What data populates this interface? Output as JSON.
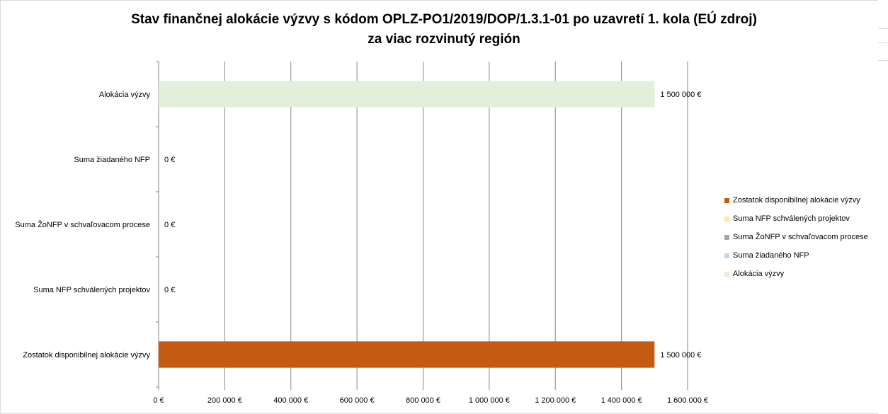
{
  "chart_data": {
    "type": "bar",
    "orientation": "horizontal",
    "title": "Stav finančnej alokácie výzvy s kódom OPLZ-PO1/2019/DOP/1.3.1-01 po uzavretí 1. kola (EÚ zdroj)",
    "subtitle": "za viac rozvinutý región",
    "categories": [
      "Alokácia výzvy",
      "Suma žiadaného NFP",
      "Suma ŽoNFP v schvaľovacom procese",
      "Suma NFP schválených projektov",
      "Zostatok disponibilnej alokácie výzvy"
    ],
    "values": [
      1500000,
      0,
      0,
      0,
      1500000
    ],
    "data_labels": [
      "1 500 000 €",
      "0 €",
      "0 €",
      "0 €",
      "1 500 000 €"
    ],
    "colors": [
      "#e2efda",
      "#bdd7ee",
      "#a5a5a5",
      "#ffe699",
      "#c55a11"
    ],
    "xlim": [
      0,
      1600000
    ],
    "x_ticks": [
      0,
      200000,
      400000,
      600000,
      800000,
      1000000,
      1200000,
      1400000,
      1600000
    ],
    "x_tick_labels": [
      "0 €",
      "200 000 €",
      "400 000 €",
      "600 000 €",
      "800 000 €",
      "1 000 000 €",
      "1 200 000 €",
      "1 400 000 €",
      "1 600 000 €"
    ],
    "grid": true,
    "legend_position": "right",
    "legend": [
      {
        "label": "Zostatok disponibilnej alokácie výzvy",
        "color": "#c55a11"
      },
      {
        "label": "Suma NFP schválených projektov",
        "color": "#ffe699"
      },
      {
        "label": "Suma ŽoNFP v schvaľovacom procese",
        "color": "#a5a5a5"
      },
      {
        "label": "Suma žiadaného NFP",
        "color": "#bdd7ee"
      },
      {
        "label": "Alokácia výzvy",
        "color": "#e2efda"
      }
    ]
  }
}
